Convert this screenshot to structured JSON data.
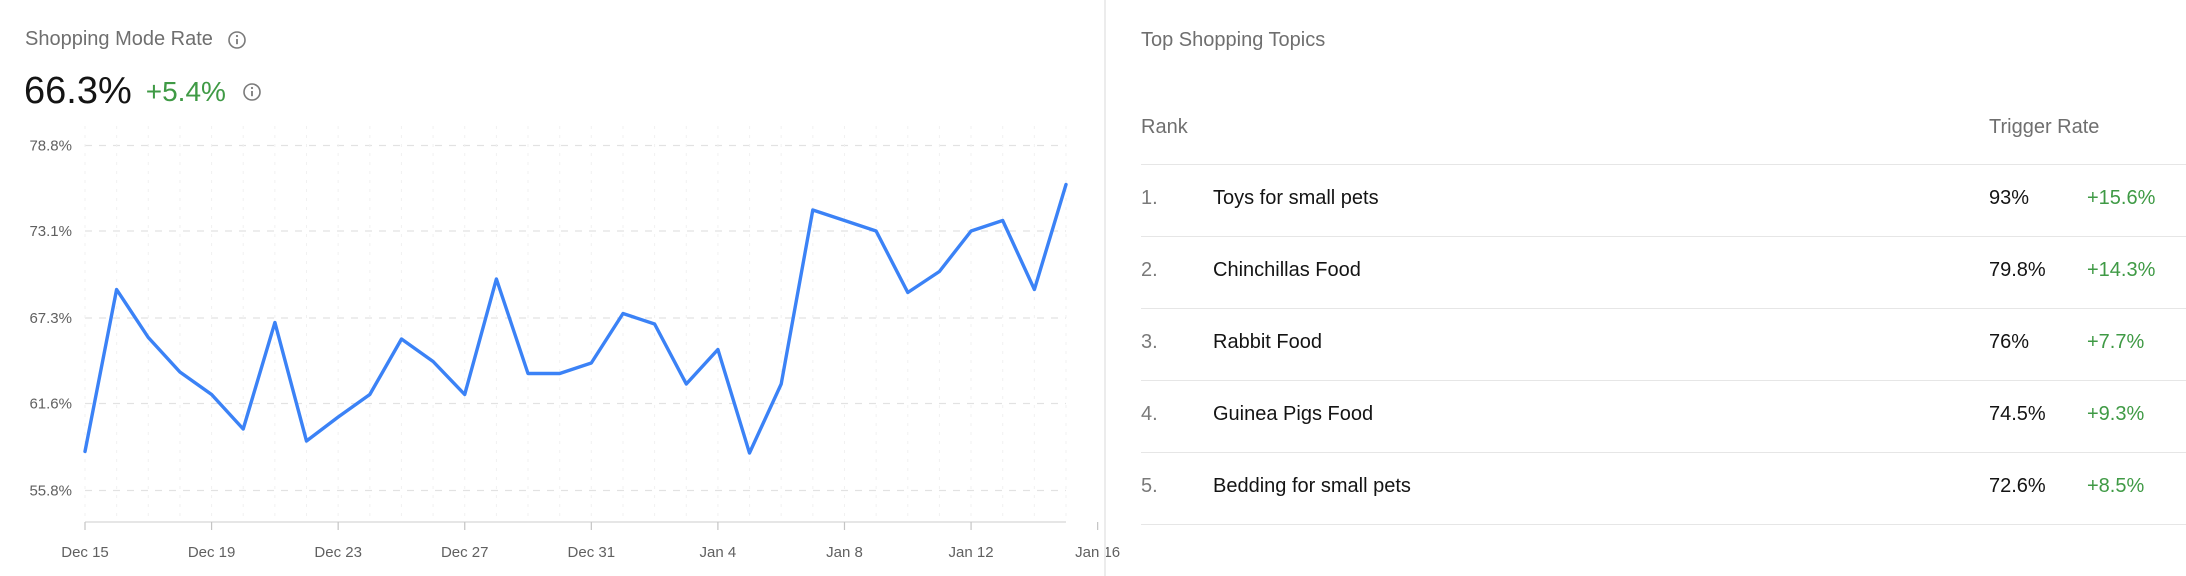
{
  "left": {
    "title": "Shopping Mode Rate",
    "value": "66.3%",
    "delta": "+5.4%"
  },
  "right": {
    "title": "Top Shopping Topics",
    "headers": {
      "rank": "Rank",
      "rate": "Trigger Rate"
    },
    "rows": [
      {
        "rank": "1.",
        "topic": "Toys for small pets",
        "rate": "93%",
        "delta": "+15.6%"
      },
      {
        "rank": "2.",
        "topic": "Chinchillas Food",
        "rate": "79.8%",
        "delta": "+14.3%"
      },
      {
        "rank": "3.",
        "topic": "Rabbit Food",
        "rate": "76%",
        "delta": "+7.7%"
      },
      {
        "rank": "4.",
        "topic": "Guinea Pigs Food",
        "rate": "74.5%",
        "delta": "+9.3%"
      },
      {
        "rank": "5.",
        "topic": "Bedding for small pets",
        "rate": "72.6%",
        "delta": "+8.5%"
      }
    ]
  },
  "colors": {
    "line": "#3b82f6",
    "positive": "#3f9a45",
    "grid": "#e2e2e2"
  },
  "icons": [
    "info-icon"
  ],
  "chart_data": {
    "type": "line",
    "title": "",
    "xlabel": "",
    "ylabel": "",
    "ylim": [
      53.7,
      80.1
    ],
    "y_ticks": [
      "55.8%",
      "61.6%",
      "67.3%",
      "73.1%",
      "78.8%"
    ],
    "y_tick_values": [
      55.8,
      61.6,
      67.3,
      73.1,
      78.8
    ],
    "x_ticks": [
      "Dec 15",
      "Dec 19",
      "Dec 23",
      "Dec 27",
      "Dec 31",
      "Jan 4",
      "Jan 8",
      "Jan 12",
      "Jan 16"
    ],
    "grid": true,
    "series": [
      {
        "values": [
          58.4,
          69.2,
          66.0,
          63.7,
          62.2,
          59.9,
          67.0,
          59.1,
          60.7,
          62.2,
          65.9,
          64.4,
          62.2,
          69.9,
          63.6,
          63.6,
          64.3,
          67.6,
          66.9,
          62.9,
          65.2,
          58.3,
          62.9,
          74.5,
          73.8,
          73.1,
          69.0,
          70.4,
          73.1,
          73.8,
          69.2,
          76.2
        ]
      }
    ]
  }
}
